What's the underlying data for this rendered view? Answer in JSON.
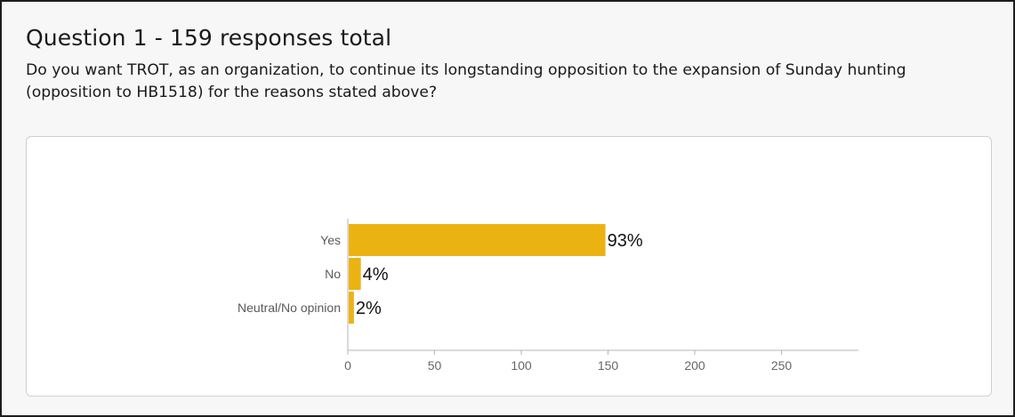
{
  "question": {
    "title": "Question 1 - 159 responses total",
    "text": "Do you want TROT, as an organization, to continue its longstanding opposition to the expansion of Sunday hunting (opposition to HB1518) for the reasons stated above?"
  },
  "chart_data": {
    "type": "bar",
    "orientation": "horizontal",
    "categories": [
      "Yes",
      "No",
      "Neutral/No opinion"
    ],
    "values": [
      148,
      7,
      3
    ],
    "data_labels": [
      "93%",
      "4%",
      "2%"
    ],
    "xticks": [
      0,
      50,
      100,
      150,
      200,
      250
    ],
    "xlim": [
      0,
      295
    ],
    "title": "",
    "xlabel": "",
    "ylabel": "",
    "grid": false,
    "legend": "none",
    "bar_color": "#ebb312"
  }
}
